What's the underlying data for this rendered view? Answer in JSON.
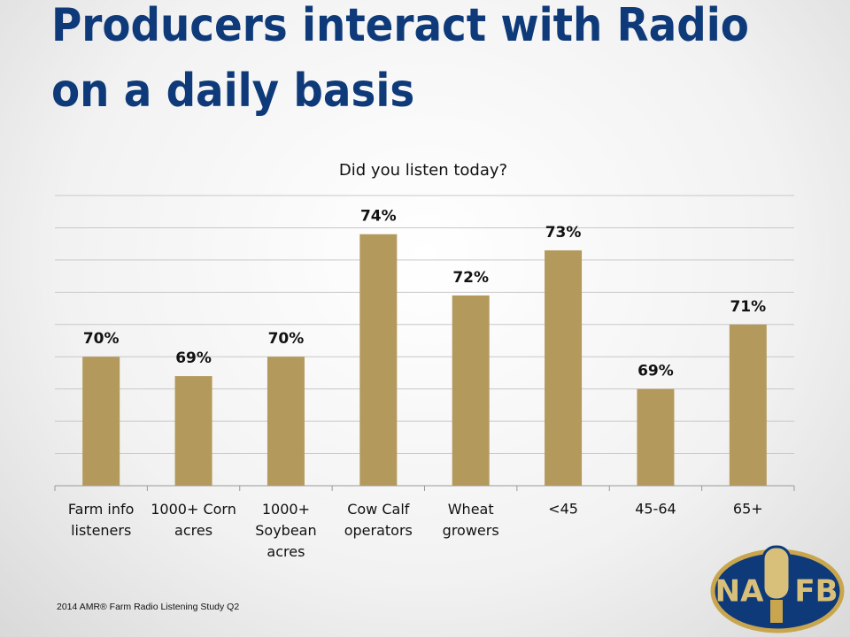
{
  "title": "Producers interact with Radio\non a daily basis",
  "footnote": "2014 AMR® Farm Radio Listening Study Q2",
  "logo": {
    "left": "NA",
    "right": "FB"
  },
  "chart_data": {
    "type": "bar",
    "title": "Did you listen today?",
    "categories": [
      "Farm info\nlisteners",
      "1000+ Corn\nacres",
      "1000+\nSoybean\nacres",
      "Cow Calf\noperators",
      "Wheat\ngrowers",
      "<45",
      "45-64",
      "65+"
    ],
    "values": [
      70,
      69.4,
      70,
      73.8,
      71.9,
      73.3,
      69,
      71
    ],
    "value_labels": [
      "70%",
      "69%",
      "70%",
      "74%",
      "72%",
      "73%",
      "69%",
      "71%"
    ],
    "color": "#b39a5c",
    "ylim": [
      66,
      75
    ],
    "yticks": [
      66,
      67,
      68,
      69,
      70,
      71,
      72,
      73,
      74,
      75
    ],
    "tick_labels": false,
    "grid": true
  }
}
